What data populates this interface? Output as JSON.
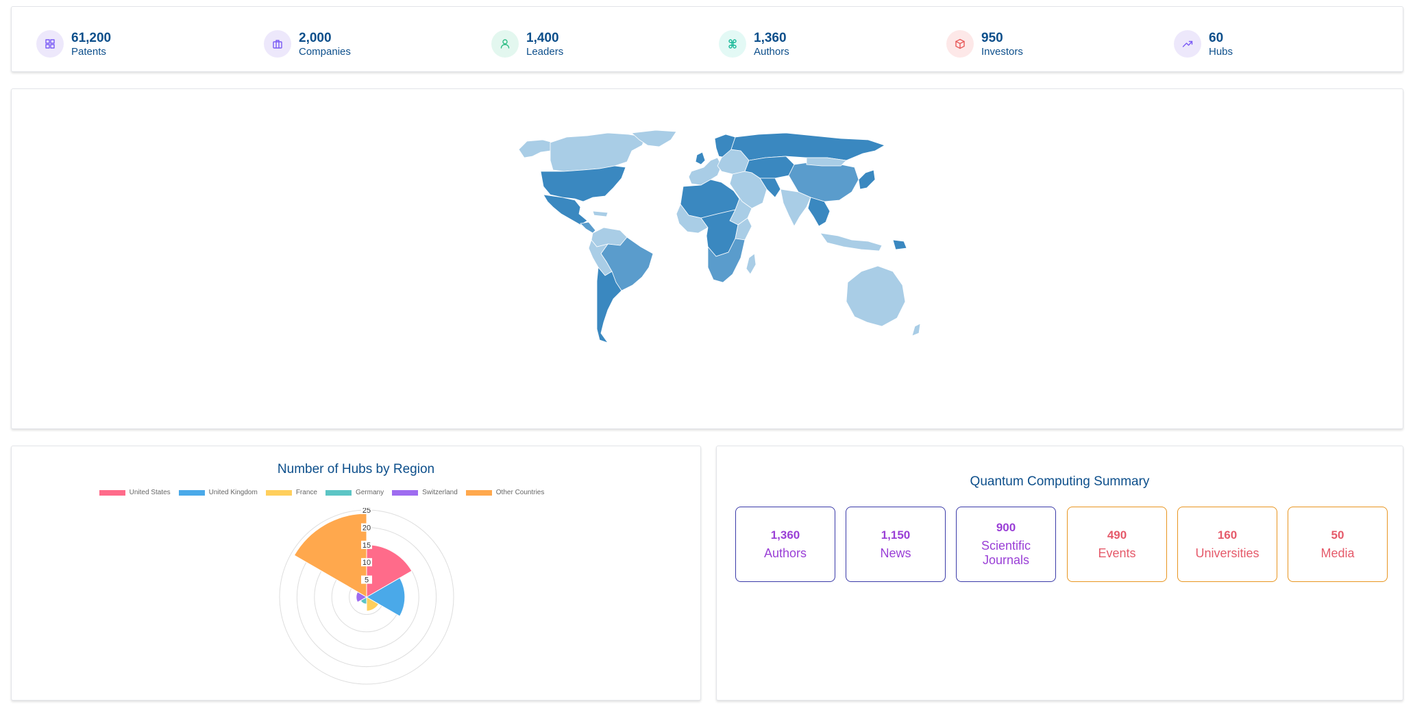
{
  "stats": [
    {
      "value": "61,200",
      "label": "Patents",
      "icon": "grid-icon",
      "icon_bg": "#ede8fb",
      "icon_color": "#7a5af5"
    },
    {
      "value": "2,000",
      "label": "Companies",
      "icon": "briefcase-icon",
      "icon_bg": "#ede8fb",
      "icon_color": "#7a5af5"
    },
    {
      "value": "1,400",
      "label": "Leaders",
      "icon": "user-icon",
      "icon_bg": "#e3f7ef",
      "icon_color": "#2ebd85"
    },
    {
      "value": "1,360",
      "label": "Authors",
      "icon": "command-icon",
      "icon_bg": "#e3f9f5",
      "icon_color": "#17b897"
    },
    {
      "value": "950",
      "label": "Investors",
      "icon": "box-icon",
      "icon_bg": "#fde8e8",
      "icon_color": "#e85a5a"
    },
    {
      "value": "60",
      "label": "Hubs",
      "icon": "trending-up-icon",
      "icon_bg": "#ede8fb",
      "icon_color": "#7a5af5"
    }
  ],
  "polar": {
    "title": "Number of Hubs by Region"
  },
  "chart_data": {
    "type": "polar-area",
    "categories": [
      "United States",
      "United Kingdom",
      "France",
      "Germany",
      "Switzerland",
      "Other Countries"
    ],
    "values": [
      15,
      11,
      4,
      2,
      3,
      24
    ],
    "colors": [
      "#ff6b8a",
      "#4aa9e9",
      "#ffcf5c",
      "#5cc5c5",
      "#9e6cf0",
      "#ffa84d"
    ],
    "rlim": [
      0,
      25
    ],
    "ticks": [
      5,
      10,
      15,
      20,
      25
    ],
    "legend_position": "top"
  },
  "summary": {
    "title": "Quantum Computing Summary",
    "items": [
      {
        "value": "1,360",
        "label": "Authors",
        "color": "#9a3fd6",
        "border": "#3a3aa8"
      },
      {
        "value": "1,150",
        "label": "News",
        "color": "#9a3fd6",
        "border": "#3a3aa8"
      },
      {
        "value": "900",
        "label": "Scientific Journals",
        "color": "#9a3fd6",
        "border": "#3a3aa8"
      },
      {
        "value": "490",
        "label": "Events",
        "color": "#e55a6a",
        "border": "#e8951f"
      },
      {
        "value": "160",
        "label": "Universities",
        "color": "#e55a6a",
        "border": "#e8951f"
      },
      {
        "value": "50",
        "label": "Media",
        "color": "#e55a6a",
        "border": "#e8951f"
      }
    ]
  },
  "map": {
    "colors": {
      "dark": "#3a88c0",
      "mid": "#5a9ccc",
      "light": "#a9cde6"
    }
  }
}
